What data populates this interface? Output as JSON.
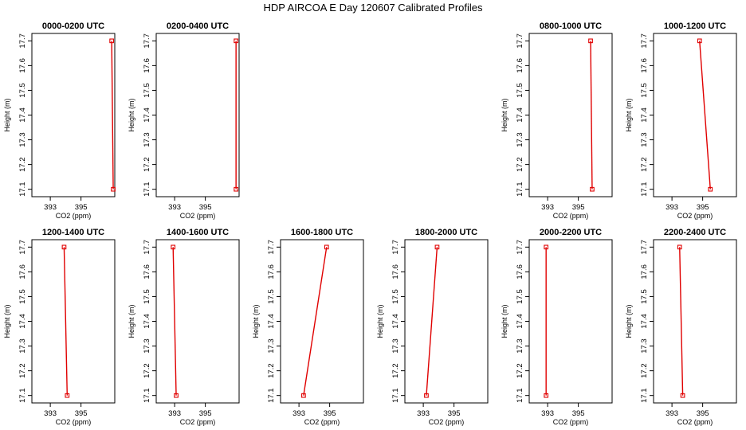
{
  "figure": {
    "title": "HDP AIRCOA E  Day 120607  Calibrated Profiles"
  },
  "style": {
    "line_color": "#e00000",
    "axis_color": "#000000",
    "background": "#ffffff",
    "marker": "open-square"
  },
  "chart_data": [
    {
      "type": "line",
      "title": "0000-0200 UTC",
      "xlabel": "CO2 (ppm)",
      "ylabel": "Height (m)",
      "xlim": [
        391.8,
        397.2
      ],
      "ylim": [
        17.07,
        17.73
      ],
      "xticks": [
        393,
        395
      ],
      "yticks": [
        17.1,
        17.2,
        17.3,
        17.4,
        17.5,
        17.6,
        17.7
      ],
      "x": [
        397.0,
        397.1
      ],
      "y": [
        17.7,
        17.1
      ]
    },
    {
      "type": "line",
      "title": "0200-0400 UTC",
      "xlabel": "CO2 (ppm)",
      "ylabel": "Height (m)",
      "xlim": [
        391.8,
        397.2
      ],
      "ylim": [
        17.07,
        17.73
      ],
      "xticks": [
        393,
        395
      ],
      "yticks": [
        17.1,
        17.2,
        17.3,
        17.4,
        17.5,
        17.6,
        17.7
      ],
      "x": [
        397.0,
        397.0
      ],
      "y": [
        17.7,
        17.1
      ]
    },
    null,
    null,
    {
      "type": "line",
      "title": "0800-1000 UTC",
      "xlabel": "CO2 (ppm)",
      "ylabel": "Height (m)",
      "xlim": [
        391.8,
        397.2
      ],
      "ylim": [
        17.07,
        17.73
      ],
      "xticks": [
        393,
        395
      ],
      "yticks": [
        17.1,
        17.2,
        17.3,
        17.4,
        17.5,
        17.6,
        17.7
      ],
      "x": [
        395.8,
        395.9
      ],
      "y": [
        17.7,
        17.1
      ]
    },
    {
      "type": "line",
      "title": "1000-1200 UTC",
      "xlabel": "CO2 (ppm)",
      "ylabel": "Height (m)",
      "xlim": [
        391.8,
        397.2
      ],
      "ylim": [
        17.07,
        17.73
      ],
      "xticks": [
        393,
        395
      ],
      "yticks": [
        17.1,
        17.2,
        17.3,
        17.4,
        17.5,
        17.6,
        17.7
      ],
      "x": [
        394.8,
        395.5
      ],
      "y": [
        17.7,
        17.1
      ]
    },
    {
      "type": "line",
      "title": "1200-1400 UTC",
      "xlabel": "CO2 (ppm)",
      "ylabel": "Height (m)",
      "xlim": [
        391.8,
        397.2
      ],
      "ylim": [
        17.07,
        17.73
      ],
      "xticks": [
        393,
        395
      ],
      "yticks": [
        17.1,
        17.2,
        17.3,
        17.4,
        17.5,
        17.6,
        17.7
      ],
      "x": [
        393.9,
        394.1
      ],
      "y": [
        17.7,
        17.1
      ]
    },
    {
      "type": "line",
      "title": "1400-1600 UTC",
      "xlabel": "CO2 (ppm)",
      "ylabel": "Height (m)",
      "xlim": [
        391.8,
        397.2
      ],
      "ylim": [
        17.07,
        17.73
      ],
      "xticks": [
        393,
        395
      ],
      "yticks": [
        17.1,
        17.2,
        17.3,
        17.4,
        17.5,
        17.6,
        17.7
      ],
      "x": [
        392.9,
        393.1
      ],
      "y": [
        17.7,
        17.1
      ]
    },
    {
      "type": "line",
      "title": "1600-1800 UTC",
      "xlabel": "CO2 (ppm)",
      "ylabel": "Height (m)",
      "xlim": [
        391.8,
        397.2
      ],
      "ylim": [
        17.07,
        17.73
      ],
      "xticks": [
        393,
        395
      ],
      "yticks": [
        17.1,
        17.2,
        17.3,
        17.4,
        17.5,
        17.6,
        17.7
      ],
      "x": [
        394.8,
        393.3
      ],
      "y": [
        17.7,
        17.1
      ]
    },
    {
      "type": "line",
      "title": "1800-2000 UTC",
      "xlabel": "CO2 (ppm)",
      "ylabel": "Height (m)",
      "xlim": [
        391.8,
        397.2
      ],
      "ylim": [
        17.07,
        17.73
      ],
      "xticks": [
        393,
        395
      ],
      "yticks": [
        17.1,
        17.2,
        17.3,
        17.4,
        17.5,
        17.6,
        17.7
      ],
      "x": [
        393.9,
        393.2
      ],
      "y": [
        17.7,
        17.1
      ]
    },
    {
      "type": "line",
      "title": "2000-2200 UTC",
      "xlabel": "CO2 (ppm)",
      "ylabel": "Height (m)",
      "xlim": [
        391.8,
        397.2
      ],
      "ylim": [
        17.07,
        17.73
      ],
      "xticks": [
        393,
        395
      ],
      "yticks": [
        17.1,
        17.2,
        17.3,
        17.4,
        17.5,
        17.6,
        17.7
      ],
      "x": [
        392.9,
        392.9
      ],
      "y": [
        17.7,
        17.1
      ]
    },
    {
      "type": "line",
      "title": "2200-2400 UTC",
      "xlabel": "CO2 (ppm)",
      "ylabel": "Height (m)",
      "xlim": [
        391.8,
        397.2
      ],
      "ylim": [
        17.07,
        17.73
      ],
      "xticks": [
        393,
        395
      ],
      "yticks": [
        17.1,
        17.2,
        17.3,
        17.4,
        17.5,
        17.6,
        17.7
      ],
      "x": [
        393.5,
        393.7
      ],
      "y": [
        17.7,
        17.1
      ]
    }
  ]
}
